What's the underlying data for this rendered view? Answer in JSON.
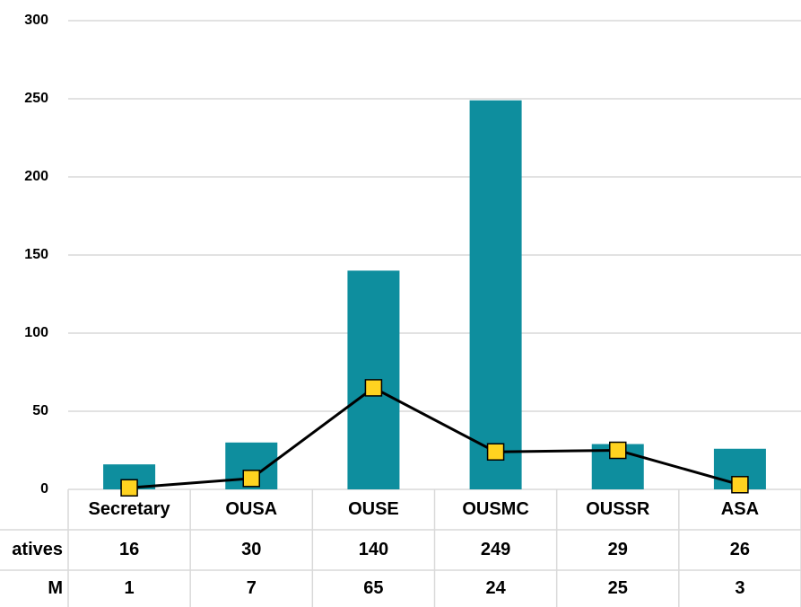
{
  "chart_data": {
    "type": "bar",
    "categories": [
      "Secretary",
      "OUSA",
      "OUSE",
      "OUSMC",
      "OUSSR",
      "ASA"
    ],
    "series": [
      {
        "name": "atives",
        "type": "bar",
        "color": "#0e8e9e",
        "values": [
          16,
          30,
          140,
          249,
          29,
          26
        ]
      },
      {
        "name": "M",
        "type": "line",
        "color": "#000000",
        "marker_color": "#ffd320",
        "values": [
          1,
          7,
          65,
          24,
          25,
          3
        ]
      }
    ],
    "ylim": [
      0,
      300
    ],
    "yticks": [
      0,
      50,
      100,
      150,
      200,
      250,
      300
    ],
    "grid": true
  }
}
